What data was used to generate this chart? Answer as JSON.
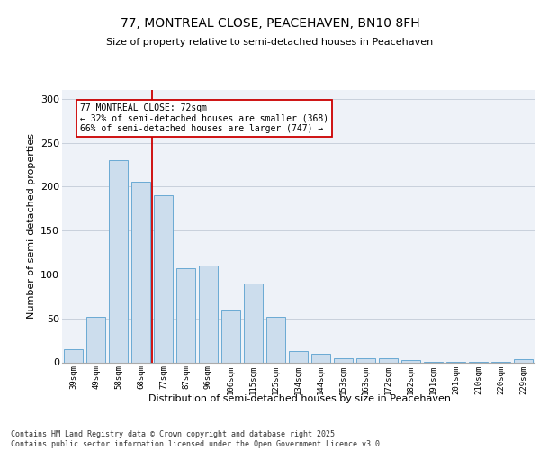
{
  "title1": "77, MONTREAL CLOSE, PEACEHAVEN, BN10 8FH",
  "title2": "Size of property relative to semi-detached houses in Peacehaven",
  "xlabel": "Distribution of semi-detached houses by size in Peacehaven",
  "ylabel": "Number of semi-detached properties",
  "categories": [
    "39sqm",
    "49sqm",
    "58sqm",
    "68sqm",
    "77sqm",
    "87sqm",
    "96sqm",
    "106sqm",
    "115sqm",
    "125sqm",
    "134sqm",
    "144sqm",
    "153sqm",
    "163sqm",
    "172sqm",
    "182sqm",
    "191sqm",
    "201sqm",
    "210sqm",
    "220sqm",
    "229sqm"
  ],
  "values": [
    15,
    52,
    230,
    205,
    190,
    107,
    110,
    60,
    90,
    52,
    13,
    10,
    5,
    5,
    5,
    3,
    1,
    1,
    1,
    1,
    4
  ],
  "bar_color": "#ccdded",
  "bar_edge_color": "#6aaad4",
  "vline_label": "77 MONTREAL CLOSE: 72sqm",
  "annotation_smaller": "← 32% of semi-detached houses are smaller (368)",
  "annotation_larger": "66% of semi-detached houses are larger (747) →",
  "box_color": "#cc0000",
  "ylim": [
    0,
    310
  ],
  "yticks": [
    0,
    50,
    100,
    150,
    200,
    250,
    300
  ],
  "footer": "Contains HM Land Registry data © Crown copyright and database right 2025.\nContains public sector information licensed under the Open Government Licence v3.0.",
  "bg_color": "#eef2f8",
  "grid_color": "#c8d0dc"
}
